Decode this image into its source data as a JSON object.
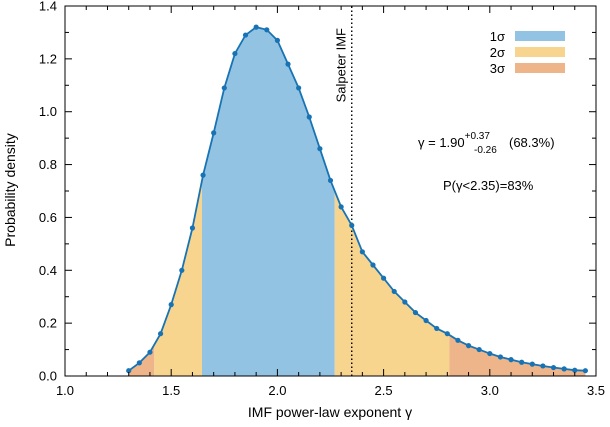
{
  "chart_data": {
    "type": "area",
    "xlabel": "IMF power-law exponent γ",
    "ylabel": "Probability density",
    "xlim": [
      1.0,
      3.5
    ],
    "ylim": [
      0.0,
      1.4
    ],
    "xticks": [
      1.0,
      1.5,
      2.0,
      2.5,
      3.0,
      3.5
    ],
    "xtick_labels": [
      "1.0",
      "1.5",
      "2.0",
      "2.5",
      "3.0",
      "3.5"
    ],
    "yticks": [
      0.0,
      0.2,
      0.4,
      0.6,
      0.8,
      1.0,
      1.2,
      1.4
    ],
    "ytick_labels": [
      "0.0",
      "0.2",
      "0.4",
      "0.6",
      "0.8",
      "1.0",
      "1.2",
      "1.4"
    ],
    "grid": false,
    "legend_position": "top-right",
    "series": [
      {
        "x": [
          1.3,
          1.35,
          1.4,
          1.45,
          1.5,
          1.55,
          1.6,
          1.65,
          1.7,
          1.75,
          1.8,
          1.85,
          1.9,
          1.95,
          2.0,
          2.05,
          2.1,
          2.15,
          2.2,
          2.25,
          2.3,
          2.35,
          2.4,
          2.45,
          2.5,
          2.55,
          2.6,
          2.65,
          2.7,
          2.75,
          2.8,
          2.85,
          2.9,
          2.95,
          3.0,
          3.05,
          3.1,
          3.15,
          3.2,
          3.25,
          3.3,
          3.35,
          3.4,
          3.45
        ],
        "values": [
          0.02,
          0.05,
          0.09,
          0.16,
          0.27,
          0.4,
          0.56,
          0.76,
          0.92,
          1.09,
          1.22,
          1.29,
          1.32,
          1.31,
          1.27,
          1.18,
          1.09,
          0.98,
          0.86,
          0.74,
          0.64,
          0.57,
          0.47,
          0.42,
          0.37,
          0.32,
          0.28,
          0.24,
          0.21,
          0.18,
          0.16,
          0.135,
          0.115,
          0.1,
          0.085,
          0.072,
          0.062,
          0.052,
          0.045,
          0.038,
          0.032,
          0.027,
          0.022,
          0.02
        ]
      }
    ],
    "confidence_regions": [
      {
        "label": "1σ",
        "color": "#93c3e2",
        "intervals": [
          [
            1.645,
            2.27
          ]
        ]
      },
      {
        "label": "2σ",
        "color": "#f7d58f",
        "intervals": [
          [
            1.42,
            1.645
          ],
          [
            2.27,
            2.81
          ]
        ]
      },
      {
        "label": "3σ",
        "color": "#eeb48a",
        "intervals": [
          [
            1.3,
            1.42
          ],
          [
            2.81,
            3.45
          ]
        ]
      }
    ],
    "curve_color": "#1873b4",
    "reference_line": {
      "x": 2.35,
      "label": "Salpeter IMF",
      "style": "dotted"
    },
    "annotations": {
      "gamma_prefix": "γ = 1.90",
      "gamma_plus": "+0.37",
      "gamma_minus": "-0.26",
      "gamma_suffix": "(68.3%)",
      "probability": "P(γ<2.35)=83%"
    }
  }
}
